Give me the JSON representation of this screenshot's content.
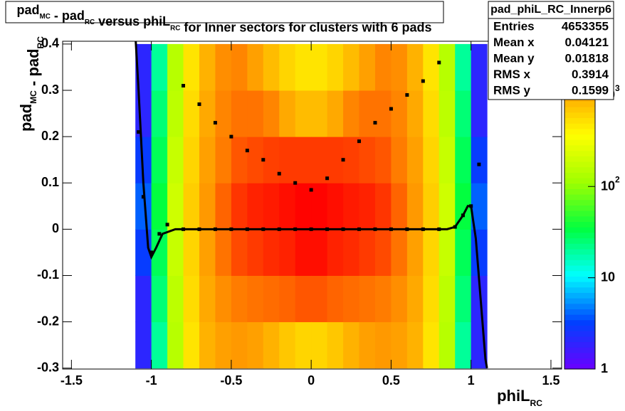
{
  "chart_data": {
    "type": "heatmap",
    "title_parts": [
      {
        "text": "pad",
        "sub": "MC"
      },
      {
        "text": " - pad",
        "sub": "RC"
      },
      {
        "text": " versus phiL",
        "sub": "RC"
      },
      {
        "text": " for Inner sectors for clusters with 6 pads"
      }
    ],
    "ylabel_parts": [
      {
        "text": "pad",
        "sub": "MC"
      },
      {
        "text": " - pad",
        "sub": "RC"
      }
    ],
    "xlabel_parts": [
      {
        "text": "phiL",
        "sub": "RC"
      }
    ],
    "xlim": [
      -1.555,
      1.567
    ],
    "ylim": [
      -0.302,
      0.406
    ],
    "xticks": [
      -1.5,
      -1,
      -0.5,
      0,
      0.5,
      1,
      1.5
    ],
    "yticks": [
      -0.3,
      -0.2,
      -0.1,
      0,
      0.1,
      0.2,
      0.3,
      0.4
    ],
    "zlim": [
      1,
      3900
    ],
    "zlog": true,
    "zticks": [
      {
        "value": 1,
        "label": "1"
      },
      {
        "value": 10,
        "label": "10"
      },
      {
        "value": 100,
        "label": "10",
        "exponent": "2"
      },
      {
        "value": 1000,
        "label": "10",
        "exponent": "3"
      }
    ],
    "palette": [
      "#6a00ff",
      "#0040ff",
      "#00ffff",
      "#00ff40",
      "#a0ff00",
      "#ffff00",
      "#ff9900",
      "#ff0000"
    ],
    "xbins": [
      -1.1,
      -1.0,
      -0.9,
      -0.8,
      -0.7,
      -0.6,
      -0.5,
      -0.4,
      -0.3,
      -0.2,
      -0.1,
      0,
      0.1,
      0.2,
      0.3,
      0.4,
      0.5,
      0.6,
      0.7,
      0.8,
      0.9,
      1.0,
      1.1
    ],
    "ybins": [
      -0.3,
      -0.2,
      -0.1,
      0,
      0.1,
      0.2,
      0.3,
      0.4
    ],
    "z": [
      [
        2,
        2,
        3,
        4,
        3,
        2,
        2
      ],
      [
        20,
        25,
        30,
        35,
        30,
        25,
        20
      ],
      [
        150,
        160,
        180,
        200,
        180,
        160,
        150
      ],
      [
        500,
        550,
        600,
        650,
        600,
        550,
        500
      ],
      [
        900,
        1000,
        1100,
        1200,
        1100,
        1000,
        900
      ],
      [
        1100,
        1300,
        1600,
        1800,
        1500,
        1400,
        1300
      ],
      [
        1200,
        1500,
        2200,
        2600,
        2000,
        1600,
        1400
      ],
      [
        1100,
        1600,
        2500,
        3000,
        2200,
        1600,
        1100
      ],
      [
        900,
        1700,
        2800,
        3200,
        2400,
        1400,
        800
      ],
      [
        700,
        1800,
        3000,
        3500,
        2500,
        1000,
        600
      ],
      [
        600,
        2000,
        3500,
        3800,
        2500,
        800,
        500
      ],
      [
        600,
        2000,
        3500,
        3800,
        2500,
        800,
        500
      ],
      [
        700,
        1800,
        3000,
        3500,
        2500,
        1000,
        600
      ],
      [
        900,
        1700,
        2800,
        3200,
        2400,
        1400,
        800
      ],
      [
        1100,
        1600,
        2500,
        3000,
        2200,
        1600,
        1100
      ],
      [
        1200,
        1500,
        2200,
        2600,
        2000,
        1600,
        1400
      ],
      [
        1100,
        1300,
        1600,
        1800,
        1500,
        1400,
        1300
      ],
      [
        900,
        1000,
        1100,
        1200,
        1100,
        1000,
        900
      ],
      [
        500,
        550,
        600,
        650,
        600,
        550,
        500
      ],
      [
        150,
        160,
        180,
        200,
        180,
        160,
        150
      ],
      [
        20,
        25,
        30,
        35,
        30,
        25,
        20
      ],
      [
        2,
        2,
        3,
        4,
        3,
        2,
        2
      ]
    ],
    "series": [
      {
        "name": "upper",
        "color": "#000000",
        "x": [
          -0.8,
          -0.7,
          -0.6,
          -0.5,
          -0.4,
          -0.3,
          -0.2,
          -0.1,
          0,
          0.1,
          0.2,
          0.3,
          0.4,
          0.5,
          0.6,
          0.7,
          0.8
        ],
        "values": [
          0.31,
          0.27,
          0.23,
          0.2,
          0.17,
          0.15,
          0.12,
          0.1,
          0.085,
          0.11,
          0.15,
          0.19,
          0.23,
          0.26,
          0.29,
          0.32,
          0.36
        ]
      },
      {
        "name": "central",
        "color": "#000000",
        "x": [
          -1.08,
          -1.05,
          -1.0,
          -0.95,
          -0.9,
          -0.8,
          -0.7,
          -0.6,
          -0.5,
          -0.4,
          -0.3,
          -0.2,
          -0.1,
          0,
          0.1,
          0.2,
          0.3,
          0.4,
          0.5,
          0.6,
          0.7,
          0.8,
          0.9,
          0.95,
          1.0,
          1.05
        ],
        "values": [
          0.21,
          0.07,
          -0.05,
          -0.01,
          0.01,
          0,
          0,
          0,
          0,
          0,
          0,
          0,
          0,
          0,
          0,
          0,
          0,
          0,
          0,
          0,
          0,
          0,
          0.005,
          0.03,
          0.05,
          0.14
        ]
      },
      {
        "name": "fit",
        "color": "#000000",
        "line": true,
        "x": [
          -1.1,
          -1.08,
          -1.05,
          -1.02,
          -1.0,
          -0.97,
          -0.93,
          -0.85,
          0.85,
          0.9,
          0.95,
          0.98,
          1.0,
          1.03,
          1.06,
          1.09,
          1.1
        ],
        "values": [
          0.42,
          0.3,
          0.1,
          -0.04,
          -0.06,
          -0.04,
          -0.01,
          0,
          0,
          0.005,
          0.03,
          0.05,
          0.05,
          -0.02,
          -0.15,
          -0.28,
          -0.3
        ]
      }
    ],
    "stats": {
      "title": "pad_phiL_RC_Innerp6",
      "rows": [
        [
          "Entries",
          4653355
        ],
        [
          "Mean x",
          0.04121
        ],
        [
          "Mean y",
          0.01818
        ],
        [
          "RMS x",
          0.3914
        ],
        [
          "RMS y",
          0.1599
        ]
      ]
    }
  }
}
